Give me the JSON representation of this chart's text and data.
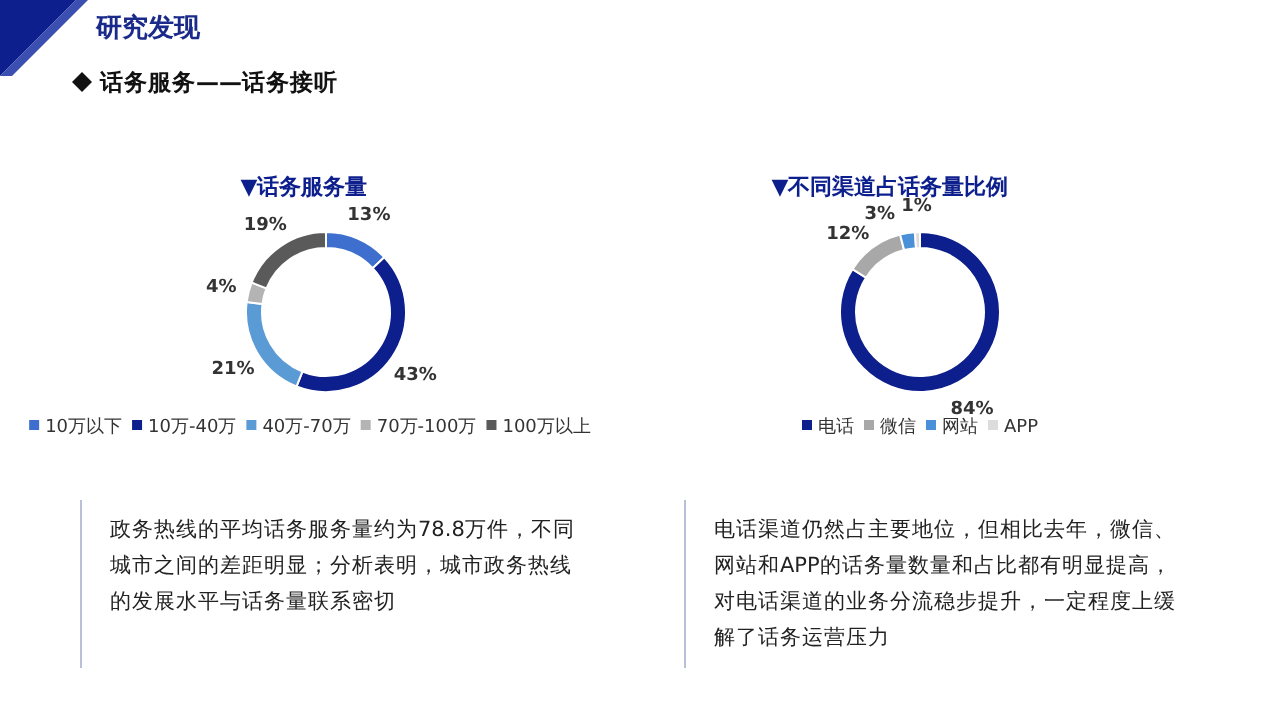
{
  "chart_data": [
    {
      "type": "other",
      "title": "研究发现",
      "subtitle": "话务服务——话务接听"
    },
    {
      "type": "donut",
      "title": "▼话务服务量",
      "categories": [
        "10万以下",
        "10万-40万",
        "40万-70万",
        "70万-100万",
        "100万以上"
      ],
      "values": [
        13,
        43,
        21,
        4,
        19
      ],
      "colors": [
        "#3f6fce",
        "#0d1f8c",
        "#5b9bd5",
        "#b4b4b4",
        "#5a5a5a"
      ],
      "value_labels": [
        "13%",
        "43%",
        "21%",
        "4%",
        "19%"
      ],
      "legend": "bottom",
      "annotations": [
        "政务热线的平均话务服务量约为78.8万件，不同城市之间的差距明显；分析表明，城市政务热线的发展水平与话务量联系密切"
      ]
    },
    {
      "type": "donut",
      "title": "▼不同渠道占话务量比例",
      "categories": [
        "电话",
        "微信",
        "网站",
        "APP"
      ],
      "values": [
        84,
        12,
        3,
        1
      ],
      "colors": [
        "#0d1f8c",
        "#a8a8a8",
        "#4a90d9",
        "#dcdcdc"
      ],
      "value_labels": [
        "84%",
        "12%",
        "3%",
        "1%"
      ],
      "legend": "bottom",
      "annotations": [
        "电话渠道仍然占主要地位，但相比去年，微信、网站和APP的话务量数量和占比都有明显提高，对电话渠道的业务分流稳步提升，一定程度上缓解了话务运营压力"
      ]
    }
  ]
}
